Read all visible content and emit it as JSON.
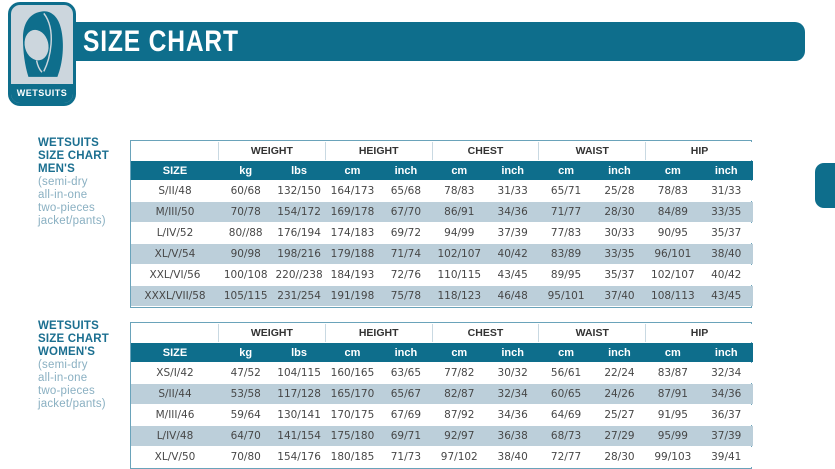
{
  "header": {
    "title": "SIZE CHART",
    "badge_label": "WETSUITS"
  },
  "colors": {
    "accent_teal": "#0e6e8c",
    "row_alt_blue": "#bccfda",
    "caption_bold": "#1b6f90",
    "caption_light": "#8ab0c2"
  },
  "columns": {
    "groups": [
      "WEIGHT",
      "HEIGHT",
      "CHEST",
      "WAIST",
      "HIP"
    ],
    "sub": [
      "SIZE",
      "kg",
      "lbs",
      "cm",
      "inch",
      "cm",
      "inch",
      "cm",
      "inch",
      "cm",
      "inch"
    ]
  },
  "tables": [
    {
      "caption_bold": [
        "WETSUITS",
        "SIZE CHART",
        "MEN'S"
      ],
      "caption_light": [
        "(semi-dry",
        "all-in-one",
        "two-pieces",
        "jacket/pants)"
      ],
      "rows": [
        [
          "S/II/48",
          "60/68",
          "132/150",
          "164/173",
          "65/68",
          "78/83",
          "31/33",
          "65/71",
          "25/28",
          "78/83",
          "31/33"
        ],
        [
          "M/III/50",
          "70/78",
          "154/172",
          "169/178",
          "67/70",
          "86/91",
          "34/36",
          "71/77",
          "28/30",
          "84/89",
          "33/35"
        ],
        [
          "L/IV/52",
          "80//88",
          "176/194",
          "174/183",
          "69/72",
          "94/99",
          "37/39",
          "77/83",
          "30/33",
          "90/95",
          "35/37"
        ],
        [
          "XL/V/54",
          "90/98",
          "198/216",
          "179/188",
          "71/74",
          "102/107",
          "40/42",
          "83/89",
          "33/35",
          "96/101",
          "38/40"
        ],
        [
          "XXL/VI/56",
          "100/108",
          "220//238",
          "184/193",
          "72/76",
          "110/115",
          "43/45",
          "89/95",
          "35/37",
          "102/107",
          "40/42"
        ],
        [
          "XXXL/VII/58",
          "105/115",
          "231/254",
          "191/198",
          "75/78",
          "118/123",
          "46/48",
          "95/101",
          "37/40",
          "108/113",
          "43/45"
        ]
      ]
    },
    {
      "caption_bold": [
        "WETSUITS",
        "SIZE CHART",
        "WOMEN'S"
      ],
      "caption_light": [
        "(semi-dry",
        "all-in-one",
        "two-pieces",
        "jacket/pants)"
      ],
      "rows": [
        [
          "XS/I/42",
          "47/52",
          "104/115",
          "160/165",
          "63/65",
          "77/82",
          "30/32",
          "56/61",
          "22/24",
          "83/87",
          "32/34"
        ],
        [
          "S/II/44",
          "53/58",
          "117/128",
          "165/170",
          "65/67",
          "82/87",
          "32/34",
          "60/65",
          "24/26",
          "87/91",
          "34/36"
        ],
        [
          "M/III/46",
          "59/64",
          "130/141",
          "170/175",
          "67/69",
          "87/92",
          "34/36",
          "64/69",
          "25/27",
          "91/95",
          "36/37"
        ],
        [
          "L/IV/48",
          "64/70",
          "141/154",
          "175/180",
          "69/71",
          "92/97",
          "36/38",
          "68/73",
          "27/29",
          "95/99",
          "37/39"
        ],
        [
          "XL/V/50",
          "70/80",
          "154/176",
          "180/185",
          "71/73",
          "97/102",
          "38/40",
          "72/77",
          "28/30",
          "99/103",
          "39/41"
        ]
      ]
    }
  ]
}
